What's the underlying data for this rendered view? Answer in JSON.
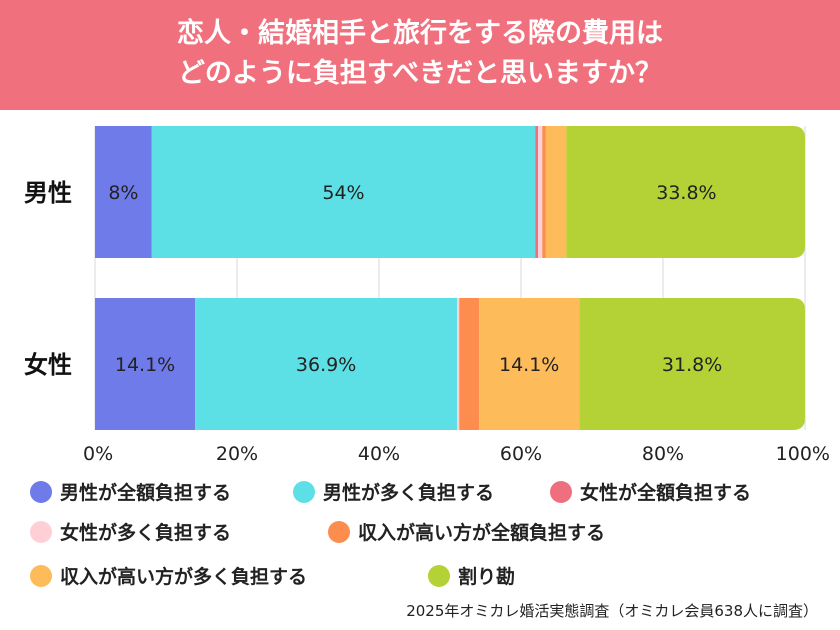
{
  "header": {
    "title_line1": "恋人・結婚相手と旅行をする際の費用は",
    "title_line2": "どのように負担すべきだと思いますか？"
  },
  "chart_data": {
    "type": "bar",
    "orientation": "horizontal-stacked-100",
    "categories": [
      "男性",
      "女性"
    ],
    "xlim": [
      0,
      100
    ],
    "ticks": [
      "0%",
      "20%",
      "40%",
      "60%",
      "80%",
      "100%"
    ],
    "series": [
      {
        "name": "男性が全額負担する",
        "color": "#6f7be8",
        "values": [
          8.0,
          14.1
        ],
        "labels": [
          "8%",
          "14.1%"
        ]
      },
      {
        "name": "男性が多く負担する",
        "color": "#5ce0e6",
        "values": [
          54.0,
          36.9
        ],
        "labels": [
          "54%",
          "36.9%"
        ]
      },
      {
        "name": "女性が全額負担する",
        "color": "#ee6f7e",
        "values": [
          0.4,
          0.0
        ],
        "labels": [
          "",
          ""
        ]
      },
      {
        "name": "女性が多く負担する",
        "color": "#ffcfd6",
        "values": [
          0.6,
          0.3
        ],
        "labels": [
          "",
          ""
        ]
      },
      {
        "name": "収入が高い方が全額負担する",
        "color": "#fd8d4e",
        "values": [
          0.5,
          2.8
        ],
        "labels": [
          "",
          ""
        ]
      },
      {
        "name": "収入が高い方が多く負担する",
        "color": "#fdbb5a",
        "values": [
          2.9,
          14.1
        ],
        "labels": [
          "",
          "14.1%"
        ]
      },
      {
        "name": "割り勘",
        "color": "#b4d235",
        "values": [
          33.8,
          31.8
        ],
        "labels": [
          "33.8%",
          "31.8%"
        ]
      }
    ]
  },
  "source": "2025年オミカレ婚活実態調査（オミカレ会員638人に調査）"
}
